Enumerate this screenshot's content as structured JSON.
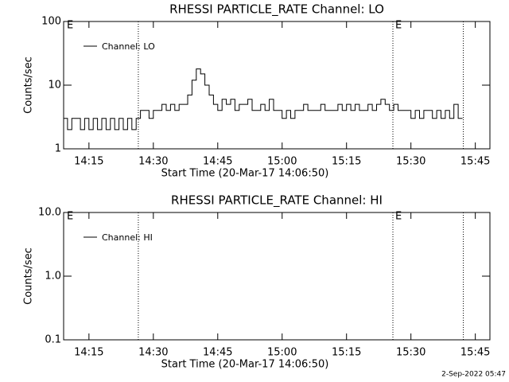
{
  "chart_data": [
    {
      "type": "line",
      "title": "RHESSI PARTICLE_RATE Channel: LO",
      "xlabel": "Start Time (20-Mar-17 14:06:50)",
      "ylabel": "Counts/sec",
      "log_y": true,
      "ylim": [
        1,
        100
      ],
      "yticks": [
        100,
        10,
        1
      ],
      "xlim": [
        849.1,
        948.4
      ],
      "xticks": [
        {
          "value": 855,
          "label": "14:15"
        },
        {
          "value": 870,
          "label": "14:30"
        },
        {
          "value": 885,
          "label": "14:45"
        },
        {
          "value": 900,
          "label": "15:00"
        },
        {
          "value": 915,
          "label": "15:15"
        },
        {
          "value": 930,
          "label": "15:30"
        },
        {
          "value": 945,
          "label": "15:45"
        }
      ],
      "vlines": [
        866.5,
        925.8,
        942.2
      ],
      "annotations": [
        "E",
        "E"
      ],
      "x": [
        849,
        850,
        851,
        852,
        853,
        854,
        855,
        856,
        857,
        858,
        859,
        860,
        861,
        862,
        863,
        864,
        865,
        866,
        867,
        868,
        869,
        870,
        871,
        872,
        873,
        874,
        875,
        876,
        877,
        878,
        879,
        880,
        881,
        882,
        883,
        884,
        885,
        886,
        887,
        888,
        889,
        890,
        891,
        892,
        893,
        894,
        895,
        896,
        897,
        898,
        899,
        900,
        901,
        902,
        903,
        904,
        905,
        906,
        907,
        908,
        909,
        910,
        911,
        912,
        913,
        914,
        915,
        916,
        917,
        918,
        919,
        920,
        921,
        922,
        923,
        924,
        925,
        926,
        927,
        928,
        929,
        930,
        931,
        932,
        933,
        934,
        935,
        936,
        937,
        938,
        939,
        940,
        941,
        942
      ],
      "series": [
        {
          "name": "Channel: LO",
          "color": "#000000",
          "values": [
            3,
            2,
            3,
            3,
            2,
            3,
            2,
            3,
            2,
            3,
            2,
            3,
            2,
            3,
            2,
            3,
            2,
            3,
            4,
            4,
            3,
            4,
            4,
            5,
            4,
            5,
            4,
            5,
            5,
            7,
            12,
            18,
            15,
            10,
            7,
            5,
            4,
            6,
            5,
            6,
            4,
            5,
            5,
            6,
            4,
            4,
            5,
            4,
            6,
            4,
            4,
            3,
            4,
            3,
            4,
            4,
            5,
            4,
            4,
            4,
            5,
            4,
            4,
            4,
            5,
            4,
            5,
            4,
            5,
            4,
            4,
            5,
            4,
            5,
            6,
            5,
            4,
            5,
            4,
            4,
            4,
            3,
            4,
            3,
            4,
            4,
            3,
            4,
            3,
            4,
            3,
            5,
            3,
            3
          ]
        }
      ]
    },
    {
      "type": "line",
      "title": "RHESSI PARTICLE_RATE Channel: HI",
      "xlabel": "Start Time (20-Mar-17 14:06:50)",
      "ylabel": "Counts/sec",
      "log_y": true,
      "ylim": [
        0.1,
        10
      ],
      "yticks": [
        {
          "value": 10,
          "label": "10.0"
        },
        {
          "value": 1,
          "label": "1.0"
        },
        {
          "value": 0.1,
          "label": "0.1"
        }
      ],
      "xlim": [
        849.1,
        948.4
      ],
      "xticks": [
        {
          "value": 855,
          "label": "14:15"
        },
        {
          "value": 870,
          "label": "14:30"
        },
        {
          "value": 885,
          "label": "14:45"
        },
        {
          "value": 900,
          "label": "15:00"
        },
        {
          "value": 915,
          "label": "15:15"
        },
        {
          "value": 930,
          "label": "15:30"
        },
        {
          "value": 945,
          "label": "15:45"
        }
      ],
      "vlines": [
        866.5,
        925.8,
        942.2
      ],
      "annotations": [
        "E",
        "E"
      ],
      "x": [],
      "series": [
        {
          "name": "Channel: HI",
          "color": "#000000",
          "values": []
        }
      ]
    }
  ],
  "footer": "2-Sep-2022 05:47"
}
